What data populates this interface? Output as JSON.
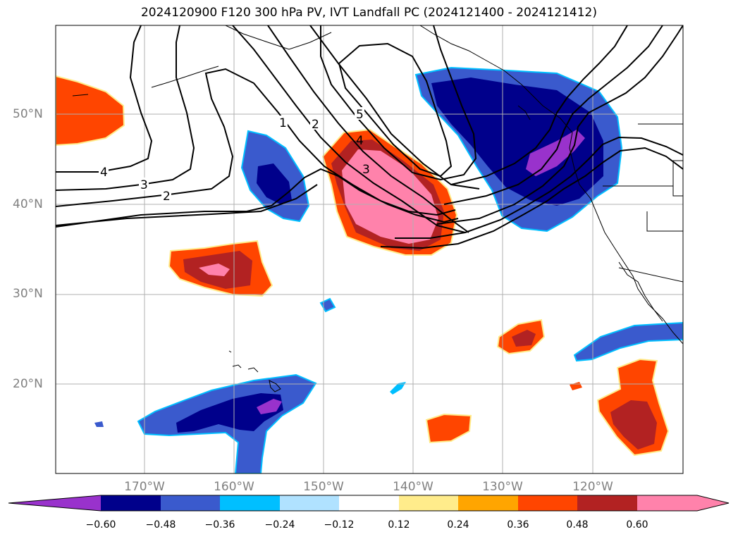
{
  "title": "2024120900 F120 300 hPa PV, IVT Landfall PC (2024121400 - 2024121412)",
  "lat_labels": [
    "50°N",
    "40°N",
    "30°N",
    "20°N"
  ],
  "lon_labels": [
    "170°W",
    "160°W",
    "150°W",
    "140°W",
    "130°W",
    "120°W"
  ],
  "contour_labels": [
    "4",
    "3",
    "2",
    "1",
    "2",
    "5",
    "4",
    "3"
  ],
  "colorbar": {
    "ticks": [
      "−0.60",
      "−0.48",
      "−0.36",
      "−0.24",
      "−0.12",
      "0.12",
      "0.24",
      "0.36",
      "0.48",
      "0.60"
    ],
    "colors": [
      "#9932cc",
      "#00008b",
      "#3a5acd",
      "#00bfff",
      "#b0e2ff",
      "#ffffff",
      "#ffec8b",
      "#ffa500",
      "#ff4500",
      "#b22222",
      "#ff82ab"
    ]
  }
}
